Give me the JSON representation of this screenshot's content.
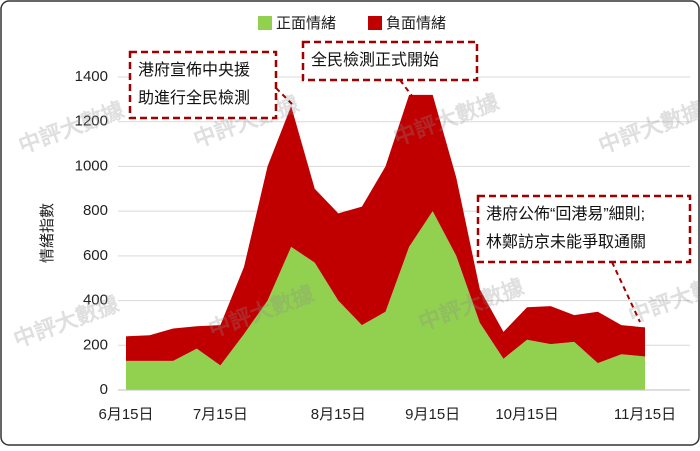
{
  "chart_data": {
    "type": "stacked-area",
    "y_label": "情緒指數",
    "watermark": "中評大數據",
    "categories": [
      "6月15日",
      null,
      null,
      null,
      "7月15日",
      null,
      null,
      null,
      null,
      "8月15日",
      null,
      null,
      null,
      "9月15日",
      null,
      null,
      null,
      "10月15日",
      null,
      null,
      null,
      null,
      "11月15日"
    ],
    "series": [
      {
        "name": "正面情緒",
        "color": "#92d050",
        "values": [
          130,
          130,
          130,
          185,
          110,
          250,
          400,
          640,
          570,
          400,
          290,
          350,
          640,
          800,
          600,
          300,
          140,
          225,
          205,
          215,
          120,
          160,
          150
        ]
      },
      {
        "name": "負面情緒",
        "color": "#c00000",
        "values": [
          110,
          115,
          145,
          100,
          180,
          300,
          600,
          630,
          330,
          390,
          530,
          650,
          680,
          520,
          350,
          150,
          120,
          145,
          170,
          120,
          230,
          130,
          130
        ]
      }
    ],
    "ylim": [
      0,
      1400
    ],
    "yticks": [
      0,
      200,
      400,
      600,
      800,
      1000,
      1200,
      1400
    ],
    "grid": true,
    "legend": "top",
    "annotations": [
      {
        "lines": [
          "港府宣佈中央援",
          "助進行全民檢測"
        ]
      },
      {
        "lines": [
          "全民檢測正式開始"
        ]
      },
      {
        "lines": [
          "港府公佈“回港易”細則;",
          "林鄭訪京未能爭取通關"
        ]
      }
    ]
  }
}
